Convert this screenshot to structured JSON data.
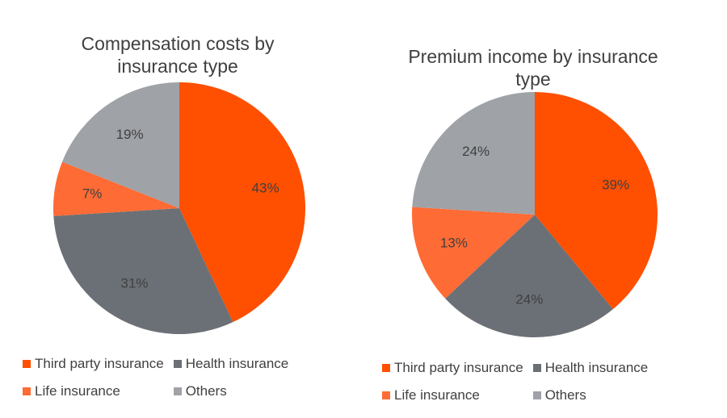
{
  "chart_data": [
    {
      "type": "pie",
      "title": "Compensation costs by insurance type",
      "categories": [
        "Third party insurance",
        "Health insurance",
        "Life insurance",
        "Others"
      ],
      "values": [
        43,
        31,
        7,
        19
      ],
      "data_labels": [
        "43%",
        "31%",
        "7%",
        "19%"
      ],
      "colors": [
        "#FF4F00",
        "#6B7076",
        "#FF6B35",
        "#9FA2A7"
      ],
      "legend_position": "bottom",
      "start_angle": "12 o'clock, clockwise"
    },
    {
      "type": "pie",
      "title": "Premium income by insurance type",
      "categories": [
        "Third party insurance",
        "Health insurance",
        "Life insurance",
        "Others"
      ],
      "values": [
        39,
        24,
        13,
        24
      ],
      "data_labels": [
        "39%",
        "24%",
        "13%",
        "24%"
      ],
      "colors": [
        "#FF4F00",
        "#6B7076",
        "#FF6B35",
        "#9FA2A7"
      ],
      "legend_position": "bottom",
      "start_angle": "12 o'clock, clockwise"
    }
  ]
}
